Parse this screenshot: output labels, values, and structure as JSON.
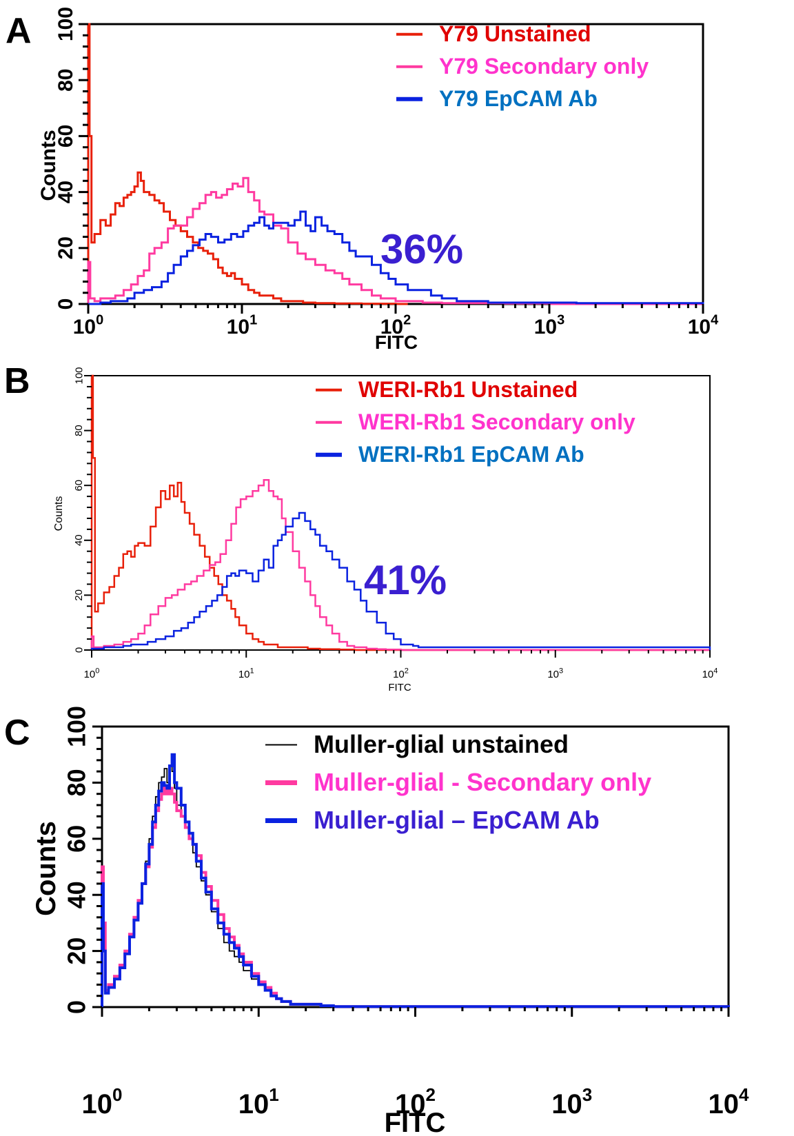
{
  "figure": {
    "panels": [
      "A",
      "B",
      "C"
    ]
  },
  "chart_data": [
    {
      "panel": "A",
      "type": "line",
      "subtype": "histogram",
      "title": "",
      "xlabel": "FITC",
      "ylabel": "Counts",
      "xscale": "log",
      "xlim": [
        1,
        10000
      ],
      "ylim": [
        0,
        100
      ],
      "xticks": [
        1,
        10,
        100,
        1000,
        10000
      ],
      "xtick_labels": [
        {
          "base": "10",
          "exp": "0"
        },
        {
          "base": "10",
          "exp": "1"
        },
        {
          "base": "10",
          "exp": "2"
        },
        {
          "base": "10",
          "exp": "3"
        },
        {
          "base": "10",
          "exp": "4"
        }
      ],
      "yticks": [
        0,
        20,
        40,
        60,
        80,
        100
      ],
      "ytick_labels": [
        "0",
        "20",
        "40",
        "60",
        "80",
        "100"
      ],
      "grid": false,
      "legend": "top-right",
      "annotation": {
        "text": "36%",
        "color": "#3a1fd0"
      },
      "series": [
        {
          "name": "Y79 Unstained",
          "color": "#e8200a",
          "label_color": "#e00000",
          "x": [
            1.0,
            1.02,
            1.05,
            1.1,
            1.2,
            1.3,
            1.4,
            1.5,
            1.6,
            1.7,
            1.8,
            1.9,
            2.0,
            2.1,
            2.2,
            2.3,
            2.5,
            2.7,
            2.9,
            3.1,
            3.4,
            3.7,
            4.0,
            4.4,
            4.8,
            5.2,
            5.6,
            6.0,
            6.5,
            7.0,
            7.5,
            8.0,
            8.5,
            9.0,
            10,
            11,
            12,
            13,
            14,
            16,
            18,
            20,
            25,
            30,
            40,
            50,
            60,
            70,
            80,
            100,
            120
          ],
          "y": [
            100,
            60,
            22,
            25,
            30,
            28,
            32,
            36,
            35,
            38,
            39,
            40,
            42,
            47,
            44,
            40,
            39,
            37,
            36,
            33,
            30,
            28,
            26,
            24,
            22,
            20,
            19,
            18,
            16,
            13,
            11,
            10,
            11,
            9,
            7,
            5,
            4,
            3,
            3,
            2,
            1,
            1,
            0.5,
            0.3,
            0.2,
            0.2,
            0.1,
            0.1,
            0.1,
            0,
            0
          ]
        },
        {
          "name": "Y79 Secondary only",
          "color": "#ff3aa0",
          "label_color": "#ff33cc",
          "x": [
            1.0,
            1.03,
            1.1,
            1.2,
            1.3,
            1.5,
            1.7,
            1.9,
            2.1,
            2.3,
            2.5,
            2.7,
            3.0,
            3.3,
            3.6,
            4.0,
            4.4,
            4.8,
            5.3,
            5.8,
            6.3,
            6.8,
            7.4,
            8.0,
            8.7,
            9.4,
            10.2,
            11,
            12,
            13,
            14,
            16,
            18,
            20,
            23,
            26,
            30,
            35,
            40,
            45,
            50,
            60,
            70,
            80,
            100,
            120,
            150,
            200,
            300,
            500,
            1000,
            10000
          ],
          "y": [
            15,
            2,
            1,
            2,
            2,
            3,
            5,
            7,
            10,
            12,
            18,
            20,
            22,
            27,
            28,
            28,
            31,
            34,
            36,
            39,
            40,
            38,
            39,
            41,
            43,
            42,
            45,
            40,
            37,
            33,
            32,
            28,
            27,
            22,
            18,
            16,
            14,
            12,
            11,
            9,
            7,
            5,
            3,
            2,
            1,
            1,
            0.5,
            0.3,
            0.3,
            0.2,
            0,
            0
          ]
        },
        {
          "name": "Y79 EpCAM Ab",
          "color": "#0a22e0",
          "label_color": "#0070c0",
          "x": [
            1.0,
            1.2,
            1.4,
            1.6,
            1.8,
            2.0,
            2.3,
            2.6,
            3.0,
            3.3,
            3.6,
            4.0,
            4.4,
            4.8,
            5.3,
            5.8,
            6.3,
            7.0,
            7.7,
            8.5,
            9.3,
            10.2,
            11,
            12,
            13,
            14,
            15,
            16,
            18,
            20,
            22,
            24,
            26,
            28,
            30,
            33,
            36,
            40,
            45,
            50,
            55,
            60,
            70,
            80,
            90,
            100,
            120,
            140,
            170,
            200,
            250,
            400,
            700,
            1000,
            1500,
            2500,
            10000
          ],
          "y": [
            0,
            0.5,
            1,
            1,
            2,
            4,
            5,
            6,
            8,
            11,
            14,
            17,
            19,
            21,
            23,
            25,
            24,
            22,
            23,
            25,
            24,
            26,
            28,
            29,
            31,
            28,
            27,
            29,
            29,
            28,
            30,
            33,
            28,
            26,
            31,
            28,
            26,
            25,
            22,
            19,
            17,
            17,
            14,
            11,
            9,
            7,
            5,
            5,
            3,
            2,
            1,
            0.5,
            0.5,
            0.5,
            0.3,
            0.3,
            0
          ]
        }
      ]
    },
    {
      "panel": "B",
      "type": "line",
      "subtype": "histogram",
      "title": "",
      "xlabel": "FITC",
      "ylabel": "Counts",
      "xscale": "log",
      "xlim": [
        1,
        10000
      ],
      "ylim": [
        0,
        100
      ],
      "xticks": [
        1,
        10,
        100,
        1000,
        10000
      ],
      "xtick_labels": [
        {
          "base": "10",
          "exp": "0"
        },
        {
          "base": "10",
          "exp": "1"
        },
        {
          "base": "10",
          "exp": "2"
        },
        {
          "base": "10",
          "exp": "3"
        },
        {
          "base": "10",
          "exp": "4"
        }
      ],
      "yticks": [
        0,
        20,
        40,
        60,
        80,
        100
      ],
      "ytick_labels": [
        "0",
        "20",
        "40",
        "60",
        "80",
        "100"
      ],
      "grid": false,
      "legend": "top-right",
      "annotation": {
        "text": "41%",
        "color": "#3a1fd0"
      },
      "series": [
        {
          "name": "WERI-Rb1 Unstained",
          "color": "#e8200a",
          "label_color": "#e00000",
          "x": [
            1.0,
            1.02,
            1.05,
            1.1,
            1.2,
            1.3,
            1.4,
            1.5,
            1.6,
            1.7,
            1.8,
            1.9,
            2.0,
            2.2,
            2.4,
            2.6,
            2.8,
            3.0,
            3.2,
            3.4,
            3.6,
            3.8,
            4.0,
            4.3,
            4.6,
            5.0,
            5.4,
            5.8,
            6.2,
            6.6,
            7.0,
            7.5,
            8.0,
            8.5,
            9.0,
            10,
            11,
            12,
            13,
            14,
            16,
            18,
            20,
            25,
            30,
            40,
            50,
            10000
          ],
          "y": [
            100,
            70,
            14,
            17,
            21,
            23,
            27,
            30,
            35,
            36,
            34,
            38,
            39,
            38,
            45,
            52,
            58,
            55,
            60,
            56,
            61,
            54,
            50,
            46,
            42,
            38,
            34,
            30,
            27,
            24,
            20,
            18,
            15,
            12,
            9,
            6,
            4,
            3,
            2,
            2,
            1,
            1,
            1,
            0.5,
            0.3,
            0.2,
            0,
            0
          ]
        },
        {
          "name": "WERI-Rb1 Secondary only",
          "color": "#ff3aa0",
          "label_color": "#ff33cc",
          "x": [
            1.0,
            1.03,
            1.1,
            1.2,
            1.4,
            1.6,
            1.8,
            2.0,
            2.2,
            2.4,
            2.7,
            3.0,
            3.3,
            3.6,
            4.0,
            4.4,
            4.8,
            5.3,
            5.8,
            6.3,
            6.8,
            7.4,
            8.0,
            8.6,
            9.2,
            10,
            11,
            12,
            13,
            14,
            15,
            16,
            17,
            18,
            20,
            22,
            24,
            26,
            28,
            30,
            33,
            36,
            40,
            45,
            50,
            60,
            70,
            80,
            100,
            10000
          ],
          "y": [
            5,
            1,
            1,
            1.5,
            2,
            3,
            4,
            6,
            9,
            13,
            16,
            19,
            20,
            22,
            24,
            25,
            27,
            29,
            31,
            32,
            35,
            40,
            46,
            52,
            55,
            56,
            58,
            60,
            62,
            58,
            56,
            55,
            48,
            43,
            36,
            30,
            25,
            20,
            16,
            12,
            9,
            6,
            3,
            1.5,
            1,
            0.5,
            0.3,
            0.2,
            0,
            0
          ]
        },
        {
          "name": "WERI-Rb1 EpCAM Ab",
          "color": "#0a22e0",
          "label_color": "#0070c0",
          "x": [
            1.0,
            1.2,
            1.4,
            1.6,
            1.8,
            2.0,
            2.3,
            2.6,
            3.0,
            3.4,
            3.8,
            4.2,
            4.6,
            5.0,
            5.5,
            6.0,
            6.5,
            7.0,
            7.5,
            8.0,
            8.5,
            9.0,
            10,
            11,
            12,
            13,
            14,
            15,
            16,
            17,
            18,
            20,
            22,
            24,
            26,
            28,
            30,
            33,
            36,
            40,
            45,
            50,
            55,
            60,
            70,
            80,
            90,
            100,
            120,
            130,
            10000
          ],
          "y": [
            0.5,
            1,
            1,
            1.5,
            2,
            2,
            3,
            4,
            5,
            7,
            8,
            10,
            12,
            14,
            16,
            18,
            20,
            23,
            27,
            28,
            27,
            29,
            28,
            25,
            29,
            33,
            30,
            38,
            40,
            42,
            45,
            48,
            50,
            47,
            44,
            42,
            38,
            36,
            33,
            30,
            25,
            22,
            18,
            14,
            10,
            6,
            4,
            2,
            1.5,
            1,
            0
          ]
        }
      ]
    },
    {
      "panel": "C",
      "type": "line",
      "subtype": "histogram",
      "title": "",
      "xlabel": "FITC",
      "ylabel": "Counts",
      "xscale": "log",
      "xlim": [
        1,
        10000
      ],
      "ylim": [
        0,
        100
      ],
      "xticks": [
        1,
        10,
        100,
        1000,
        10000
      ],
      "xtick_labels": [
        {
          "base": "10",
          "exp": "0"
        },
        {
          "base": "10",
          "exp": "1"
        },
        {
          "base": "10",
          "exp": "2"
        },
        {
          "base": "10",
          "exp": "3"
        },
        {
          "base": "10",
          "exp": "4"
        }
      ],
      "yticks": [
        0,
        20,
        40,
        60,
        80,
        100
      ],
      "ytick_labels": [
        "0",
        "20",
        "40",
        "60",
        "80",
        "100"
      ],
      "grid": false,
      "legend": "top-right",
      "series": [
        {
          "name": "Muller-glial unstained",
          "color": "#000000",
          "label_color": "#000000",
          "x": [
            1.0,
            1.02,
            1.05,
            1.1,
            1.2,
            1.3,
            1.4,
            1.5,
            1.6,
            1.7,
            1.8,
            1.9,
            2.0,
            2.1,
            2.2,
            2.3,
            2.4,
            2.5,
            2.6,
            2.7,
            2.8,
            2.9,
            3.0,
            3.2,
            3.4,
            3.6,
            3.8,
            4.0,
            4.3,
            4.6,
            5.0,
            5.5,
            6.0,
            6.5,
            7.0,
            7.5,
            8.0,
            9.0,
            10,
            11,
            12,
            13,
            14,
            16,
            18,
            20,
            25,
            30,
            10000
          ],
          "y": [
            40,
            20,
            5,
            7,
            10,
            14,
            19,
            25,
            31,
            37,
            44,
            52,
            60,
            68,
            75,
            80,
            82,
            85,
            80,
            86,
            84,
            78,
            72,
            68,
            64,
            60,
            55,
            50,
            45,
            40,
            34,
            28,
            23,
            20,
            18,
            16,
            13,
            10,
            8,
            6,
            4,
            3,
            2,
            1,
            1,
            1,
            0.5,
            0.2,
            0
          ]
        },
        {
          "name": "Muller-glial - Secondary only",
          "color": "#ff3aa0",
          "label_color": "#ff33cc",
          "x": [
            1.0,
            1.02,
            1.05,
            1.1,
            1.2,
            1.3,
            1.4,
            1.5,
            1.6,
            1.7,
            1.8,
            1.9,
            2.0,
            2.1,
            2.2,
            2.3,
            2.4,
            2.5,
            2.6,
            2.7,
            2.8,
            2.9,
            3.0,
            3.2,
            3.4,
            3.6,
            3.8,
            4.0,
            4.3,
            4.6,
            5.0,
            5.5,
            6.0,
            6.5,
            7.0,
            7.5,
            8.0,
            9.0,
            10,
            11,
            12,
            13,
            14,
            16,
            18,
            20,
            25,
            30,
            10000
          ],
          "y": [
            50,
            30,
            6,
            8,
            11,
            15,
            20,
            26,
            32,
            38,
            44,
            50,
            57,
            64,
            70,
            74,
            76,
            78,
            76,
            78,
            76,
            73,
            70,
            68,
            64,
            60,
            58,
            54,
            48,
            43,
            38,
            33,
            28,
            25,
            22,
            19,
            16,
            12,
            9,
            7,
            5,
            3,
            2,
            1,
            1,
            1,
            0.5,
            0.2,
            0
          ]
        },
        {
          "name": "Muller-glial – EpCAM Ab",
          "color": "#0a22e0",
          "label_color": "#3a1fd0",
          "x": [
            1.0,
            1.02,
            1.05,
            1.1,
            1.2,
            1.3,
            1.4,
            1.5,
            1.6,
            1.7,
            1.8,
            1.9,
            2.0,
            2.1,
            2.2,
            2.3,
            2.4,
            2.5,
            2.6,
            2.7,
            2.8,
            2.9,
            3.0,
            3.2,
            3.4,
            3.6,
            3.8,
            4.0,
            4.3,
            4.6,
            5.0,
            5.5,
            6.0,
            6.5,
            7.0,
            7.5,
            8.0,
            9.0,
            10,
            11,
            12,
            13,
            14,
            16,
            18,
            20,
            25,
            30,
            10000
          ],
          "y": [
            44,
            20,
            5,
            7,
            10,
            14,
            19,
            25,
            31,
            37,
            44,
            51,
            58,
            66,
            72,
            77,
            80,
            79,
            78,
            86,
            90,
            80,
            78,
            72,
            66,
            62,
            58,
            52,
            46,
            41,
            35,
            30,
            26,
            23,
            21,
            18,
            15,
            11,
            8,
            6,
            4,
            3,
            2,
            1,
            1,
            1,
            0.5,
            0.2,
            0
          ]
        }
      ]
    }
  ]
}
